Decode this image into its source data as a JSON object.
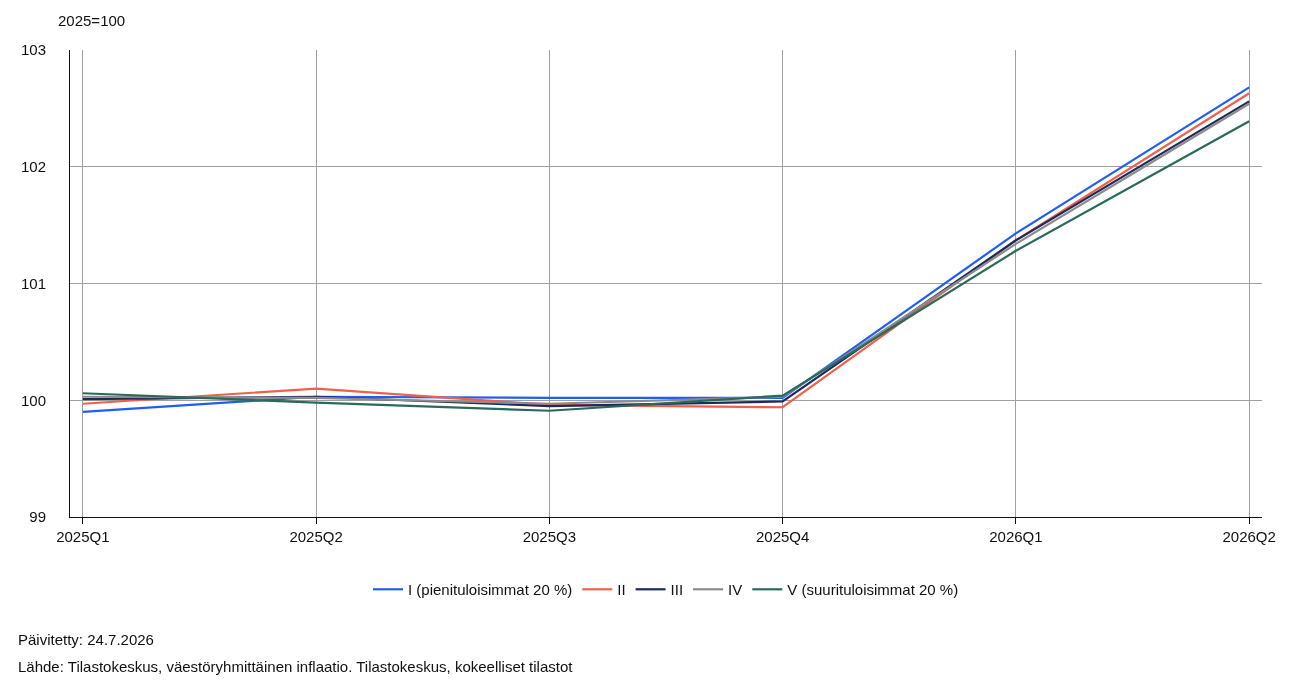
{
  "chart_data": {
    "type": "line",
    "ylabel": "2025=100",
    "categories": [
      "2025Q1",
      "2025Q2",
      "2025Q3",
      "2025Q4",
      "2026Q1",
      "2026Q2"
    ],
    "series": [
      {
        "name": "I (pienituloisimmat 20 %)",
        "color": "#1f5ef2",
        "values": [
          99.9,
          100.03,
          100.02,
          100.02,
          101.43,
          102.68
        ]
      },
      {
        "name": "II",
        "color": "#f0604a",
        "values": [
          99.97,
          100.1,
          99.96,
          99.94,
          101.37,
          102.63
        ]
      },
      {
        "name": "III",
        "color": "#1c2a5c",
        "values": [
          100.01,
          100.03,
          99.95,
          99.99,
          101.37,
          102.56
        ]
      },
      {
        "name": "IV",
        "color": "#8c8c8c",
        "values": [
          100.03,
          100.02,
          99.97,
          100.03,
          101.34,
          102.54
        ]
      },
      {
        "name": "V (suurituloisimmat 20 %)",
        "color": "#2a6a5c",
        "values": [
          100.06,
          99.98,
          99.91,
          100.04,
          101.28,
          102.39
        ]
      }
    ],
    "ylim": [
      99,
      103
    ],
    "yticks": [
      99,
      100,
      101,
      102,
      103
    ],
    "grid": true,
    "legend": "bottom",
    "marker": "none",
    "line_style": "solid",
    "annotations": [
      "Päivitetty: 24.7.2026",
      "Lähde: Tilastokeskus, väestöryhmittäinen inflaatio. Tilastokeskus, kokeelliset tilastot"
    ]
  }
}
